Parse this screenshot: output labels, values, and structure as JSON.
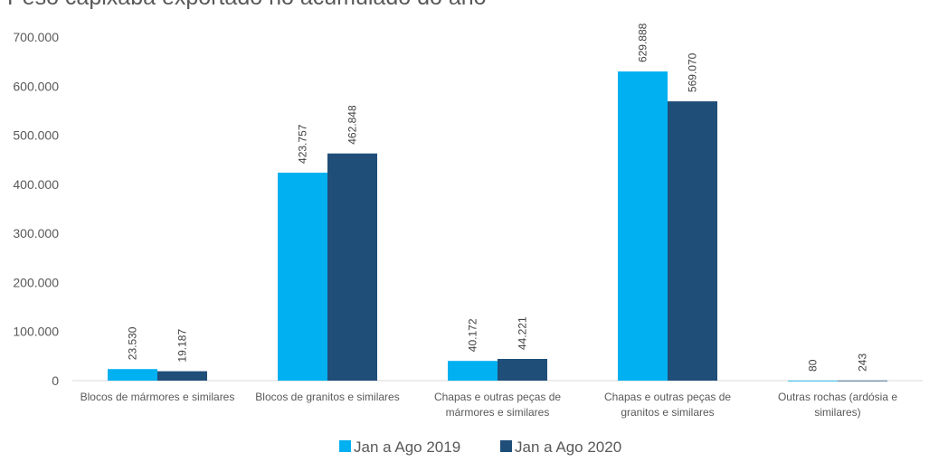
{
  "chart_data": {
    "type": "bar",
    "title": "Peso capixaba exportado no acumulado do ano",
    "categories": [
      [
        "Blocos de mármores e similares"
      ],
      [
        "Blocos de granitos e similares"
      ],
      [
        "Chapas e outras peças de",
        "mármores e similares"
      ],
      [
        "Chapas e outras peças de",
        "granitos e similares"
      ],
      [
        "Outras rochas (ardósia e",
        "similares)"
      ]
    ],
    "series": [
      {
        "name": "Jan a Ago 2019",
        "color": "#00B0F0",
        "values": [
          23530,
          423757,
          40172,
          629888,
          80
        ],
        "labels": [
          "23.530",
          "423.757",
          "40.172",
          "629.888",
          "80"
        ]
      },
      {
        "name": "Jan a Ago 2020",
        "color": "#1F4E79",
        "values": [
          19187,
          462848,
          44221,
          569070,
          243
        ],
        "labels": [
          "19.187",
          "462.848",
          "44.221",
          "569.070",
          "243"
        ]
      }
    ],
    "ylim": [
      0,
      700000
    ],
    "yticks": [
      0,
      100000,
      200000,
      300000,
      400000,
      500000,
      600000,
      700000
    ],
    "ytick_labels": [
      "0",
      "100.000",
      "200.000",
      "300.000",
      "400.000",
      "500.000",
      "600.000",
      "700.000"
    ],
    "xlabel": "",
    "ylabel": "",
    "grid": false,
    "legend": "bottom"
  }
}
